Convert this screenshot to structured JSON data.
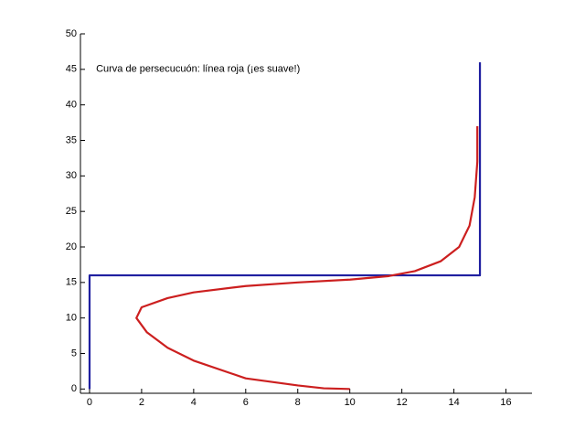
{
  "chart_data": {
    "type": "line",
    "annotation": "Curva de persecucuón: línea roja (¡es suave!)",
    "annotation_x": 0.25,
    "annotation_y": 45,
    "series": [
      {
        "color": "#1f1fa0",
        "x": [
          0,
          0,
          15,
          15
        ],
        "values": [
          0,
          16,
          16,
          46
        ]
      },
      {
        "color": "#cc1f1f",
        "x": [
          10,
          9,
          8,
          6,
          4,
          3,
          2.2,
          1.8,
          2,
          3,
          4,
          6,
          8,
          10,
          11.5,
          12.5,
          13.5,
          14.2,
          14.6,
          14.8,
          14.9,
          14.9
        ],
        "values": [
          0,
          0.1,
          0.5,
          1.5,
          4,
          5.8,
          8,
          10,
          11.5,
          12.8,
          13.6,
          14.5,
          15,
          15.4,
          15.9,
          16.6,
          18,
          20,
          23,
          27,
          32,
          37
        ]
      }
    ],
    "xlim": [
      -0.35,
      17
    ],
    "xticks": [
      0,
      2,
      4,
      6,
      8,
      10,
      12,
      14,
      16
    ],
    "ylim": [
      -0.6,
      50
    ],
    "yticks": [
      0,
      5,
      10,
      15,
      20,
      25,
      30,
      35,
      40,
      45,
      50
    ]
  }
}
